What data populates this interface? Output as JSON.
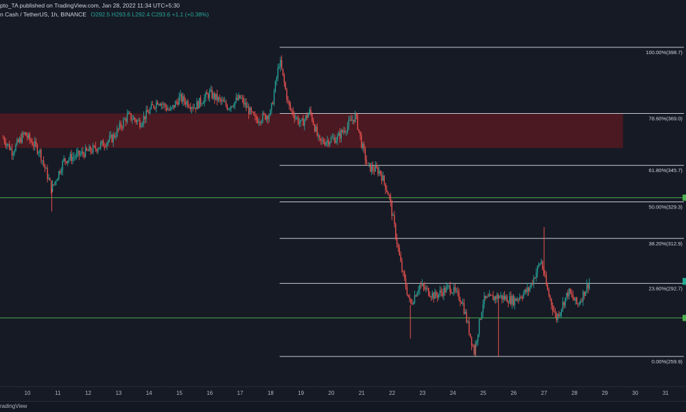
{
  "header": {
    "publisher_line": "pto_TA published on TradingView.com, Jan 28, 2022 11:34 UTC+5:30",
    "symbol_line": "n Cash / TetherUS, 1h, BINANCE",
    "ohlc": "O292.5  H293.6  L292.4  C293.6  +1.1 (+0.38%)"
  },
  "footer": {
    "brand": "radingView"
  },
  "colors": {
    "background": "#161a25",
    "up_candle": "#26a69a",
    "down_candle": "#ef5350",
    "fib_line": "#c9ccd3",
    "support_line": "#4caf50",
    "resistance_zone": "#5c1a22"
  },
  "chart_data": {
    "type": "candlestick",
    "title": "",
    "xlabel": "",
    "ylabel": "",
    "x_ticks": [
      "10",
      "11",
      "12",
      "13",
      "14",
      "15",
      "16",
      "17",
      "18",
      "19",
      "20",
      "21",
      "22",
      "23",
      "24",
      "25",
      "26",
      "27",
      "28",
      "29",
      "30",
      "31"
    ],
    "price_anchor_points": [
      {
        "x": 9.2,
        "y": 358.0
      },
      {
        "x": 9.5,
        "y": 352.0
      },
      {
        "x": 9.9,
        "y": 360.0
      },
      {
        "x": 10.4,
        "y": 352.0
      },
      {
        "x": 10.8,
        "y": 335.0
      },
      {
        "x": 11.2,
        "y": 348.0
      },
      {
        "x": 11.6,
        "y": 350.0
      },
      {
        "x": 12.2,
        "y": 353.0
      },
      {
        "x": 12.8,
        "y": 358.0
      },
      {
        "x": 13.3,
        "y": 368.0
      },
      {
        "x": 13.7,
        "y": 365.0
      },
      {
        "x": 14.3,
        "y": 375.0
      },
      {
        "x": 14.7,
        "y": 370.0
      },
      {
        "x": 15.0,
        "y": 376.0
      },
      {
        "x": 15.5,
        "y": 372.0
      },
      {
        "x": 16.0,
        "y": 378.0
      },
      {
        "x": 16.6,
        "y": 372.0
      },
      {
        "x": 17.0,
        "y": 376.0
      },
      {
        "x": 17.5,
        "y": 366.0
      },
      {
        "x": 18.0,
        "y": 369.0
      },
      {
        "x": 18.3,
        "y": 393.0
      },
      {
        "x": 18.6,
        "y": 372.0
      },
      {
        "x": 19.0,
        "y": 364.0
      },
      {
        "x": 19.3,
        "y": 370.0
      },
      {
        "x": 19.6,
        "y": 356.0
      },
      {
        "x": 20.2,
        "y": 358.0
      },
      {
        "x": 20.8,
        "y": 368.0
      },
      {
        "x": 21.0,
        "y": 355.0
      },
      {
        "x": 21.2,
        "y": 345.0
      },
      {
        "x": 21.6,
        "y": 343.0
      },
      {
        "x": 21.9,
        "y": 332.0
      },
      {
        "x": 22.3,
        "y": 300.0
      },
      {
        "x": 22.6,
        "y": 283.0
      },
      {
        "x": 22.9,
        "y": 292.0
      },
      {
        "x": 23.4,
        "y": 287.0
      },
      {
        "x": 23.9,
        "y": 291.0
      },
      {
        "x": 24.3,
        "y": 285.0
      },
      {
        "x": 24.7,
        "y": 262.0
      },
      {
        "x": 25.0,
        "y": 285.0
      },
      {
        "x": 25.5,
        "y": 287.0
      },
      {
        "x": 26.0,
        "y": 285.0
      },
      {
        "x": 26.5,
        "y": 290.0
      },
      {
        "x": 26.9,
        "y": 303.0
      },
      {
        "x": 27.1,
        "y": 290.0
      },
      {
        "x": 27.4,
        "y": 277.0
      },
      {
        "x": 27.8,
        "y": 289.0
      },
      {
        "x": 28.1,
        "y": 283.0
      },
      {
        "x": 28.5,
        "y": 293.6
      }
    ],
    "wicks": [
      {
        "x": 10.8,
        "low": 325.0
      },
      {
        "x": 22.6,
        "low": 268.0
      },
      {
        "x": 24.75,
        "low": 259.9
      },
      {
        "x": 25.5,
        "low": 259.9
      },
      {
        "x": 27.0,
        "high": 318.0
      }
    ],
    "fibonacci": {
      "start_x": 18.3,
      "end_x": 31.6,
      "levels": [
        {
          "label": "100.00%(398.7)",
          "value": 398.7
        },
        {
          "label": "78.60%(369.0)",
          "value": 369.0
        },
        {
          "label": "61.80%(345.7)",
          "value": 345.7
        },
        {
          "label": "50.00%(329.3)",
          "value": 329.3
        },
        {
          "label": "38.20%(312.9)",
          "value": 312.9
        },
        {
          "label": "23.60%(292.7)",
          "value": 292.7
        },
        {
          "label": "0.00%(259.9)",
          "value": 259.9
        }
      ]
    },
    "resistance_zone": {
      "x_start": 9.0,
      "x_end": 29.6,
      "top": 369.0,
      "bottom": 353.5
    },
    "support_lines": [
      331.2,
      277.2
    ]
  }
}
